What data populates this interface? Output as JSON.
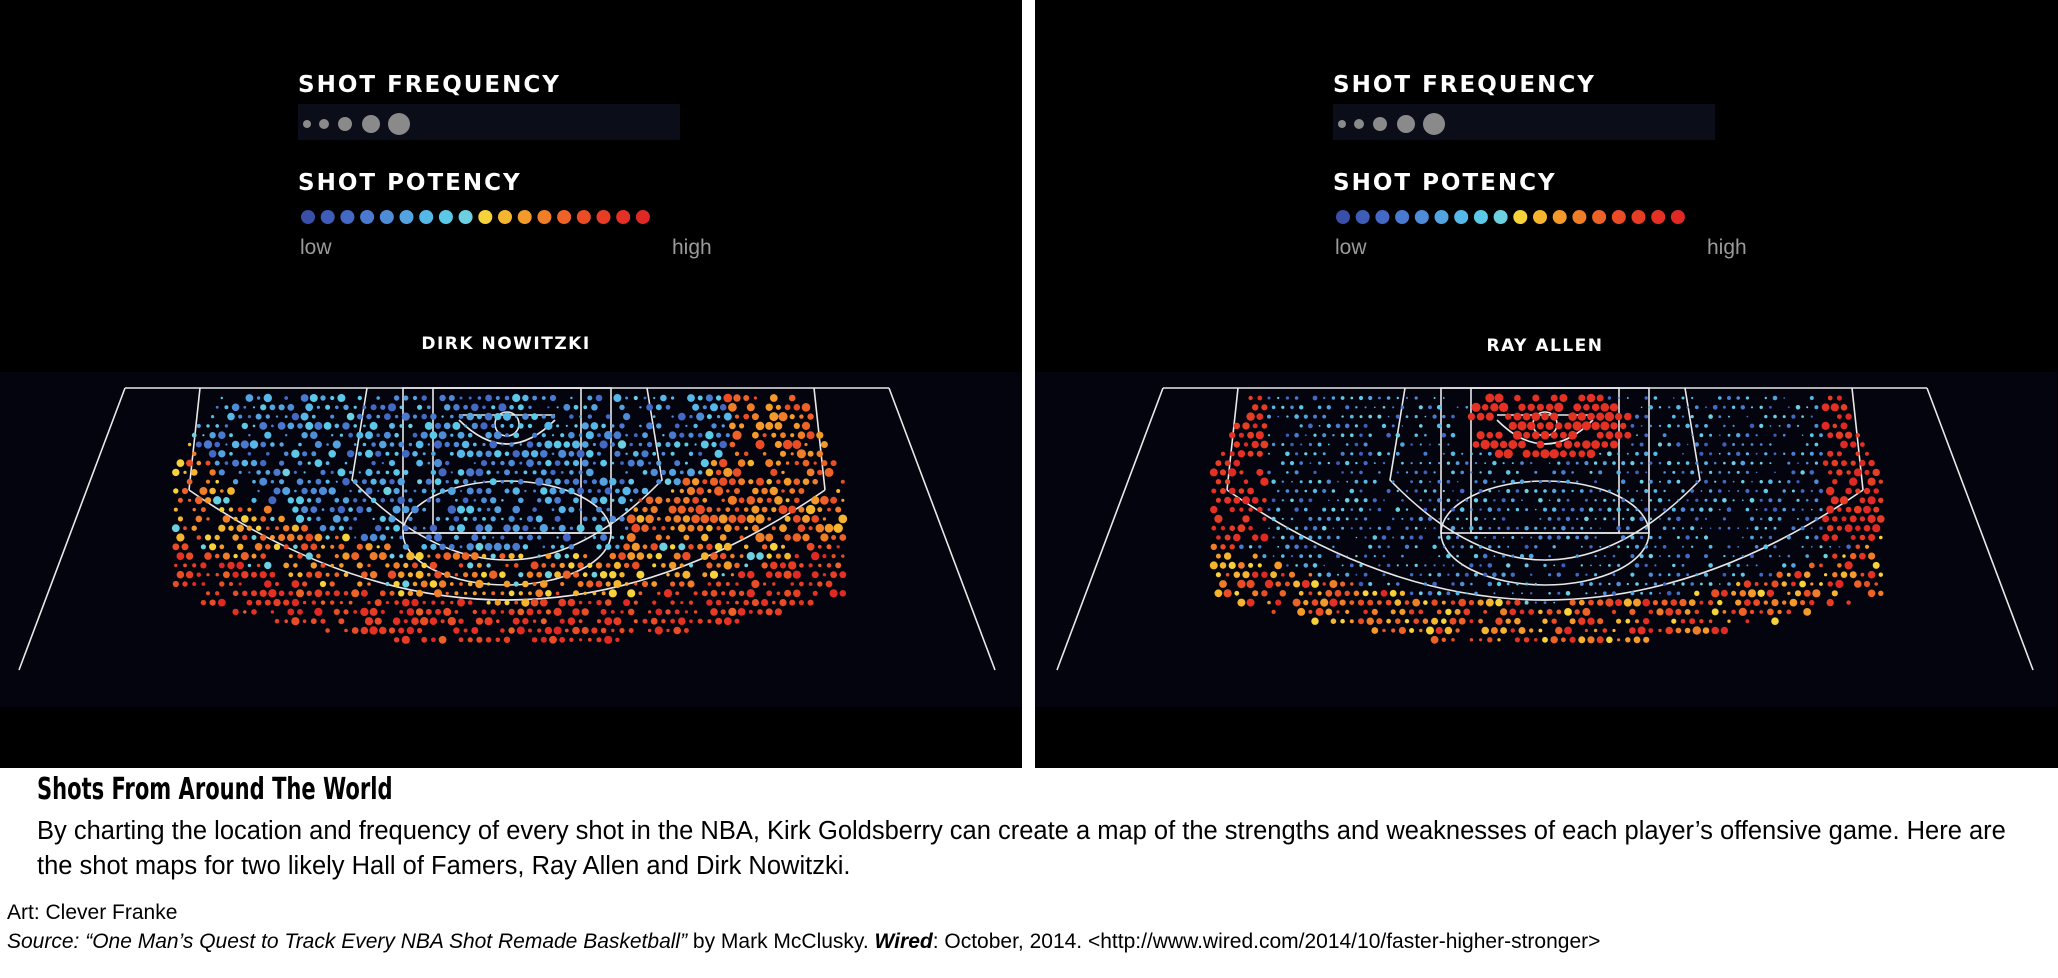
{
  "chart_data": [
    {
      "type": "scatter",
      "title": "DIRK NOWITZKI",
      "legend": {
        "frequency_title": "SHOT FREQUENCY",
        "potency_title": "SHOT POTENCY",
        "low_label": "low",
        "high_label": "high",
        "potency_colors": [
          "#3a4fa8",
          "#3f5cb8",
          "#4469c4",
          "#4a7ad0",
          "#4f8cd8",
          "#53a3e0",
          "#56b8e8",
          "#5cc8e8",
          "#6dd0e0",
          "#f7d23a",
          "#f5b52e",
          "#f39a2a",
          "#f07d28",
          "#ed6226",
          "#ea4d25",
          "#e73d25",
          "#e43124",
          "#e02824"
        ]
      },
      "hot_zones": [
        {
          "region": "left-elbow",
          "potency": "low"
        },
        {
          "region": "right-wing-midrange",
          "potency": "high-orange"
        },
        {
          "region": "top-key",
          "potency": "low"
        },
        {
          "region": "corner-three-arc",
          "potency": "high-red"
        }
      ]
    },
    {
      "type": "scatter",
      "title": "RAY ALLEN",
      "legend": {
        "frequency_title": "SHOT FREQUENCY",
        "potency_title": "SHOT POTENCY",
        "low_label": "low",
        "high_label": "high"
      },
      "hot_zones": [
        {
          "region": "rim",
          "potency": "high-red"
        },
        {
          "region": "left-corner-three",
          "potency": "high-red"
        },
        {
          "region": "right-corner-three",
          "potency": "high-red"
        },
        {
          "region": "three-arc",
          "potency": "high-orange"
        }
      ]
    }
  ],
  "caption": {
    "title": "Shots From Around The World",
    "body": "By charting the location and frequency of every shot in the NBA, Kirk Goldsberry can create a map of the strengths and weaknesses of each player’s offensive game. Here are the shot maps for two likely Hall of Famers, Ray Allen and Dirk Nowitzki."
  },
  "credits": {
    "art": "Art:  Clever Franke",
    "source_prefix": "Source: ",
    "source_title": "“One Man’s Quest to Track Every NBA Shot Remade Basketball”",
    "source_by": " by Mark McClusky. ",
    "source_pub": "Wired",
    "source_rest": ": October, 2014. <http://www.wired.com/2014/10/faster-higher-stronger>"
  }
}
